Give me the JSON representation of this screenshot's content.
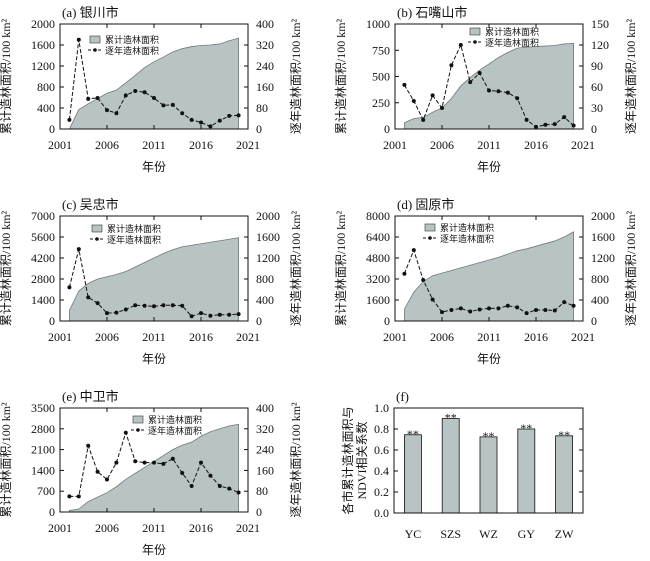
{
  "colors": {
    "area_fill": "#b8c4c4",
    "area_stroke": "#6f7a7a",
    "line": "#111111",
    "bar_fill": "#b8c4c4"
  },
  "common": {
    "xlabel": "年份",
    "ylabel_left": "累计造林面积/100 km²",
    "ylabel_right": "逐年造林面积/100 km²",
    "legend_area": "累计造林面积",
    "legend_line": "逐年造林面积",
    "xticks": [
      "2001",
      "2006",
      "2011",
      "2016",
      "2021"
    ]
  },
  "chart_data": [
    {
      "type": "area+line",
      "title": "(a) 银川市",
      "x": [
        2002,
        2003,
        2004,
        2005,
        2006,
        2007,
        2008,
        2009,
        2010,
        2011,
        2012,
        2013,
        2014,
        2015,
        2016,
        2017,
        2018,
        2019,
        2020
      ],
      "cumulative": [
        0,
        370,
        480,
        580,
        680,
        740,
        880,
        1020,
        1170,
        1280,
        1370,
        1470,
        1530,
        1570,
        1590,
        1600,
        1620,
        1680,
        1730
      ],
      "annual": [
        35,
        340,
        115,
        118,
        72,
        60,
        128,
        145,
        140,
        118,
        90,
        92,
        60,
        35,
        25,
        10,
        32,
        50,
        52
      ],
      "ylim_left": [
        0,
        2000
      ],
      "yticks_left": [
        "0",
        "400",
        "800",
        "1200",
        "1600",
        "2000"
      ],
      "ylim_right": [
        0,
        400
      ],
      "yticks_right": [
        "0",
        "80",
        "160",
        "240",
        "320",
        "400"
      ],
      "xlim": [
        2001,
        2021
      ]
    },
    {
      "type": "area+line",
      "title": "(b) 石嘴山市",
      "x": [
        2002,
        2003,
        2004,
        2005,
        2006,
        2007,
        2008,
        2009,
        2010,
        2011,
        2012,
        2013,
        2014,
        2015,
        2016,
        2017,
        2018,
        2019,
        2020
      ],
      "cumulative": [
        60,
        100,
        110,
        160,
        200,
        290,
        410,
        490,
        560,
        620,
        680,
        730,
        770,
        780,
        785,
        790,
        795,
        810,
        815
      ],
      "annual": [
        63,
        40,
        13,
        48,
        30,
        91,
        120,
        67,
        80,
        55,
        54,
        52,
        44,
        13,
        3,
        6,
        7,
        17,
        5
      ],
      "ylim_left": [
        0,
        1000
      ],
      "yticks_left": [
        "0",
        "250",
        "500",
        "750",
        "1000"
      ],
      "ylim_right": [
        0,
        150
      ],
      "yticks_right": [
        "0",
        "30",
        "60",
        "90",
        "120",
        "150"
      ],
      "xlim": [
        2001,
        2021
      ]
    },
    {
      "type": "area+line",
      "title": "(c) 吴忠市",
      "x": [
        2002,
        2003,
        2004,
        2005,
        2006,
        2007,
        2008,
        2009,
        2010,
        2011,
        2012,
        2013,
        2014,
        2015,
        2016,
        2017,
        2018,
        2019,
        2020
      ],
      "cumulative": [
        700,
        2000,
        2500,
        2800,
        2950,
        3100,
        3300,
        3600,
        3900,
        4200,
        4500,
        4750,
        4950,
        5050,
        5150,
        5250,
        5350,
        5450,
        5550
      ],
      "annual": [
        640,
        1370,
        450,
        340,
        150,
        160,
        220,
        300,
        290,
        280,
        300,
        300,
        290,
        90,
        150,
        100,
        120,
        120,
        130
      ],
      "ylim_left": [
        0,
        7000
      ],
      "yticks_left": [
        "0",
        "1400",
        "2800",
        "4200",
        "5600",
        "7000"
      ],
      "ylim_right": [
        0,
        2000
      ],
      "yticks_right": [
        "0",
        "400",
        "800",
        "1200",
        "1600",
        "2000"
      ],
      "xlim": [
        2001,
        2021
      ]
    },
    {
      "type": "area+line",
      "title": "(d) 固原市",
      "x": [
        2002,
        2003,
        2004,
        2005,
        2006,
        2007,
        2008,
        2009,
        2010,
        2011,
        2012,
        2013,
        2014,
        2015,
        2016,
        2017,
        2018,
        2019,
        2020
      ],
      "cumulative": [
        900,
        2200,
        3000,
        3450,
        3650,
        3850,
        4050,
        4250,
        4450,
        4650,
        4850,
        5100,
        5350,
        5500,
        5700,
        5900,
        6100,
        6400,
        6800
      ],
      "annual": [
        900,
        1350,
        780,
        410,
        170,
        210,
        240,
        180,
        220,
        240,
        240,
        290,
        260,
        150,
        210,
        210,
        200,
        360,
        290
      ],
      "ylim_left": [
        0,
        8000
      ],
      "yticks_left": [
        "0",
        "1600",
        "3200",
        "4800",
        "6400",
        "8000"
      ],
      "ylim_right": [
        0,
        2000
      ],
      "yticks_right": [
        "0",
        "400",
        "800",
        "1200",
        "1600",
        "2000"
      ],
      "xlim": [
        2001,
        2021
      ]
    },
    {
      "type": "area+line",
      "title": "(e) 中卫市",
      "x": [
        2002,
        2003,
        2004,
        2005,
        2006,
        2007,
        2008,
        2009,
        2010,
        2011,
        2012,
        2013,
        2014,
        2015,
        2016,
        2017,
        2018,
        2019,
        2020
      ],
      "cumulative": [
        50,
        100,
        350,
        500,
        650,
        850,
        1100,
        1300,
        1500,
        1700,
        1900,
        2100,
        2250,
        2350,
        2550,
        2700,
        2800,
        2900,
        2950
      ],
      "annual": [
        60,
        60,
        255,
        155,
        125,
        190,
        305,
        195,
        190,
        190,
        185,
        205,
        150,
        100,
        190,
        140,
        100,
        90,
        75
      ],
      "ylim_left": [
        0,
        3500
      ],
      "yticks_left": [
        "0",
        "700",
        "1400",
        "2100",
        "2800",
        "3500"
      ],
      "ylim_right": [
        0,
        400
      ],
      "yticks_right": [
        "0",
        "80",
        "160",
        "240",
        "320",
        "400"
      ],
      "xlim": [
        2001,
        2021
      ]
    },
    {
      "type": "bar",
      "title": "(f)",
      "ylabel_lines": [
        "各市累计造林面积与",
        "NDVI相关系数"
      ],
      "categories": [
        "YC",
        "SZS",
        "WZ",
        "GY",
        "ZW"
      ],
      "values": [
        0.745,
        0.9,
        0.725,
        0.8,
        0.735
      ],
      "annotations": [
        "**",
        "**",
        "**",
        "**",
        "**"
      ],
      "ylim": [
        0,
        1.0
      ],
      "yticks": [
        "0.0",
        "0.2",
        "0.4",
        "0.6",
        "0.8",
        "1.0"
      ]
    }
  ]
}
